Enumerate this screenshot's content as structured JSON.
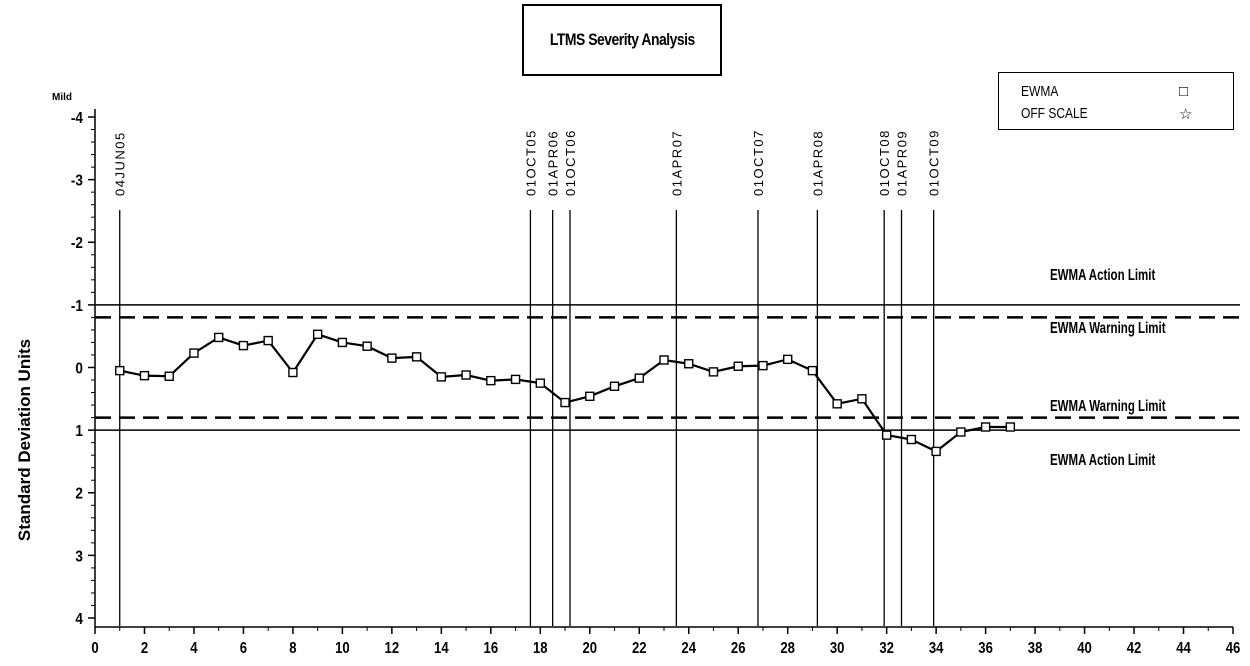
{
  "chart_data": {
    "type": "line",
    "title": "LTMS Severity Analysis",
    "ylabel": "Standard Deviation Units",
    "y_top_label": "Mild",
    "xlim": [
      0,
      46
    ],
    "ylim": [
      4,
      -4
    ],
    "x_ticks": [
      0,
      2,
      4,
      6,
      8,
      10,
      12,
      14,
      16,
      18,
      20,
      22,
      24,
      26,
      28,
      30,
      32,
      34,
      36,
      38,
      40,
      42,
      44,
      46
    ],
    "y_ticks": [
      -4,
      -3,
      -2,
      -1,
      0,
      1,
      2,
      3,
      4
    ],
    "y_tick_labels": [
      "-4",
      "-3",
      "-2",
      "-1",
      "0",
      "1",
      "2",
      "3",
      "4"
    ],
    "legend": {
      "placement": "top-right",
      "entries": [
        {
          "label": "EWMA",
          "symbol": "□"
        },
        {
          "label": "OFF SCALE",
          "symbol": "☆"
        }
      ]
    },
    "series": [
      {
        "name": "EWMA",
        "x": [
          1,
          2,
          3,
          4,
          5,
          6,
          7,
          8,
          9,
          10,
          11,
          12,
          13,
          14,
          15,
          16,
          17,
          18,
          19,
          20,
          21,
          22,
          23,
          24,
          25,
          26,
          27,
          28,
          29,
          30,
          31,
          32,
          33,
          34,
          35,
          36,
          37
        ],
        "values": [
          0.05,
          0.13,
          0.14,
          -0.23,
          -0.48,
          -0.35,
          -0.43,
          0.08,
          -0.53,
          -0.4,
          -0.34,
          -0.15,
          -0.17,
          0.15,
          0.12,
          0.21,
          0.19,
          0.25,
          0.56,
          0.46,
          0.3,
          0.17,
          -0.12,
          -0.06,
          0.07,
          -0.02,
          -0.03,
          -0.13,
          0.05,
          0.58,
          0.5,
          1.08,
          1.15,
          1.34,
          1.03,
          0.95,
          0.95
        ]
      }
    ],
    "limit_lines": [
      {
        "label": "EWMA Action Limit",
        "y": -1.0,
        "style": "solid"
      },
      {
        "label": "EWMA Warning Limit",
        "y": -0.8,
        "style": "dashed"
      },
      {
        "label": "EWMA Warning Limit",
        "y": 0.8,
        "style": "dashed"
      },
      {
        "label": "EWMA Action Limit",
        "y": 1.0,
        "style": "solid"
      }
    ],
    "date_markers": [
      {
        "x": 1.0,
        "label": "04JUN05"
      },
      {
        "x": 17.6,
        "label": "01OCT05"
      },
      {
        "x": 18.5,
        "label": "01APR06"
      },
      {
        "x": 19.2,
        "label": "01OCT06"
      },
      {
        "x": 23.5,
        "label": "01APR07"
      },
      {
        "x": 26.8,
        "label": "01OCT07"
      },
      {
        "x": 29.2,
        "label": "01APR08"
      },
      {
        "x": 31.9,
        "label": "01OCT08"
      },
      {
        "x": 32.6,
        "label": "01APR09"
      },
      {
        "x": 33.9,
        "label": "01OCT09"
      }
    ],
    "grid": false
  }
}
